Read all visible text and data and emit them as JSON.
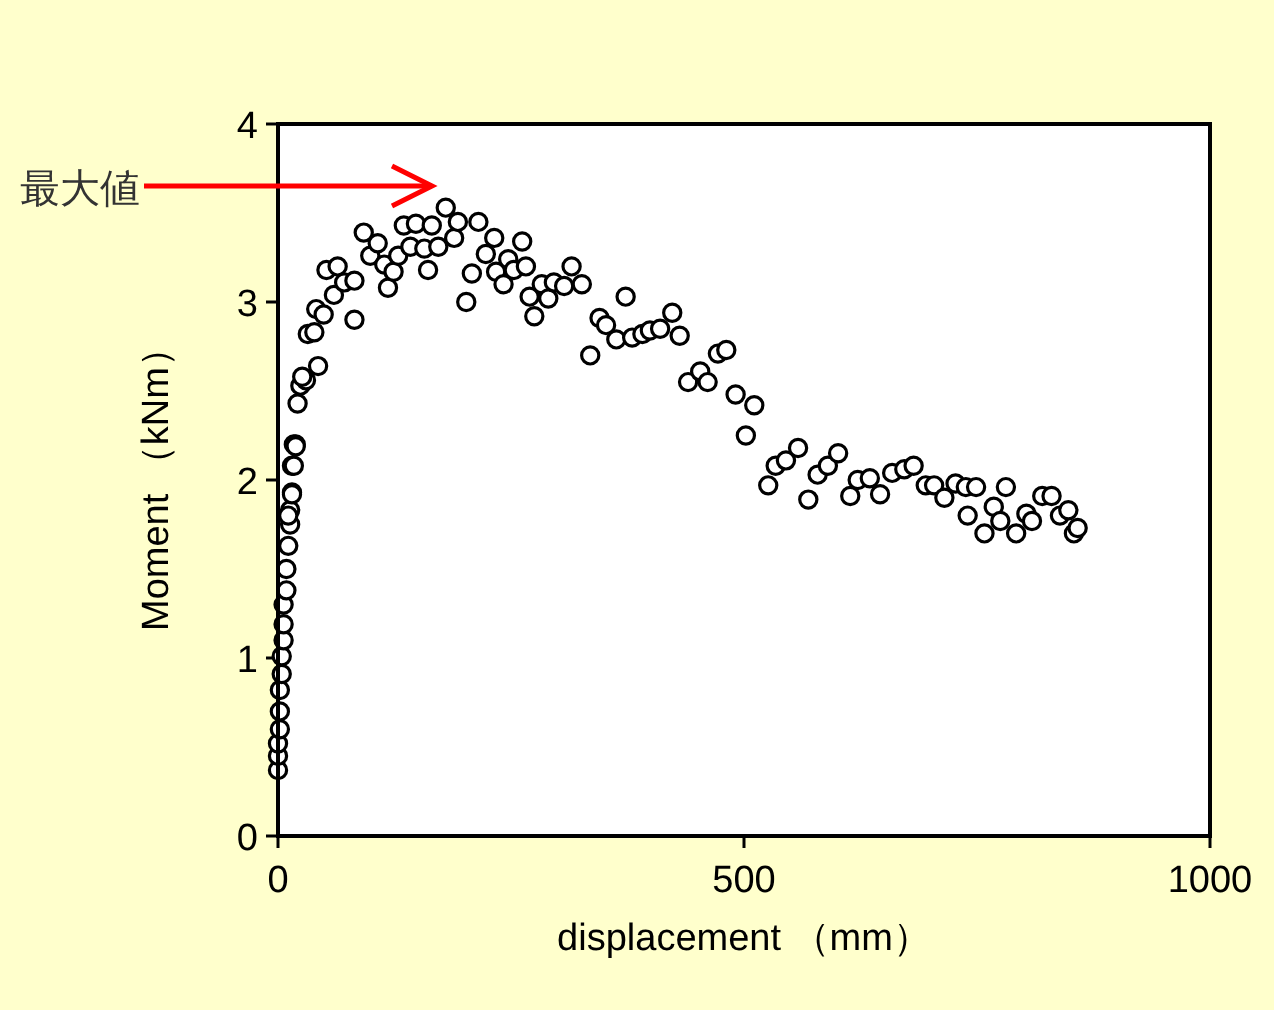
{
  "chart_data": {
    "type": "scatter",
    "xlabel": "displacement （mm）",
    "ylabel": "Moment （kNm）",
    "annotations": [
      "最大値"
    ],
    "xlim": [
      0,
      1000
    ],
    "ylim": [
      0,
      4
    ],
    "xticks": [
      0,
      500,
      1000
    ],
    "yticks": [
      0,
      1,
      2,
      3,
      4
    ],
    "marker": "circle",
    "series": [
      {
        "color": "#000000",
        "x": [
          0,
          0,
          0,
          2,
          2,
          2,
          4,
          4,
          6,
          6,
          6,
          9,
          9,
          11,
          13,
          13,
          15,
          15,
          17,
          19,
          11,
          15,
          17,
          19,
          21,
          24,
          30,
          26,
          32,
          39,
          43,
          41,
          49,
          52,
          60,
          64,
          71,
          82,
          82,
          92,
          99,
          107,
          114,
          118,
          124,
          129,
          135,
          142,
          148,
          157,
          161,
          165,
          172,
          180,
          189,
          193,
          202,
          208,
          215,
          223,
          232,
          234,
          242,
          247,
          253,
          262,
          266,
          270,
          275,
          283,
          290,
          296,
          307,
          315,
          326,
          335,
          345,
          352,
          363,
          373,
          380,
          391,
          399,
          410,
          423,
          431,
          440,
          453,
          461,
          472,
          481,
          491,
          511,
          502,
          526,
          534,
          545,
          558,
          569,
          579,
          590,
          601,
          614,
          622,
          635,
          646,
          659,
          672,
          682,
          695,
          704,
          715,
          727,
          738,
          740,
          749,
          758,
          768,
          775,
          781,
          792,
          803,
          809,
          820,
          830,
          839,
          848,
          854,
          858
        ],
        "values": [
          0.37,
          0.45,
          0.52,
          0.6,
          0.7,
          0.82,
          0.91,
          1.01,
          1.1,
          1.19,
          1.3,
          1.38,
          1.5,
          1.63,
          1.75,
          1.83,
          1.93,
          2.08,
          2.2,
          2.2,
          1.8,
          1.92,
          2.08,
          2.19,
          2.43,
          2.53,
          2.56,
          2.58,
          2.82,
          2.83,
          2.64,
          2.96,
          2.93,
          3.18,
          3.04,
          3.2,
          3.11,
          3.12,
          2.9,
          3.39,
          3.26,
          3.33,
          3.21,
          3.08,
          3.17,
          3.26,
          3.43,
          3.31,
          3.44,
          3.3,
          3.18,
          3.43,
          3.31,
          3.53,
          3.36,
          3.45,
          3.0,
          3.16,
          3.45,
          3.27,
          3.36,
          3.17,
          3.1,
          3.24,
          3.18,
          3.34,
          3.2,
          3.03,
          2.92,
          3.1,
          3.02,
          3.11,
          3.09,
          3.2,
          3.1,
          2.7,
          2.91,
          2.87,
          2.79,
          3.03,
          2.8,
          2.82,
          2.84,
          2.85,
          2.94,
          2.81,
          2.55,
          2.61,
          2.55,
          2.71,
          2.73,
          2.48,
          2.42,
          2.25,
          1.97,
          2.08,
          2.11,
          2.18,
          1.89,
          2.03,
          2.08,
          2.15,
          1.91,
          2.0,
          2.01,
          1.92,
          2.04,
          2.06,
          2.08,
          1.97,
          1.97,
          1.9,
          1.98,
          1.96,
          1.8,
          1.96,
          1.7,
          1.85,
          1.77,
          1.96,
          1.7,
          1.81,
          1.77,
          1.91,
          1.91,
          1.8,
          1.83,
          1.7,
          1.73
        ]
      }
    ]
  }
}
